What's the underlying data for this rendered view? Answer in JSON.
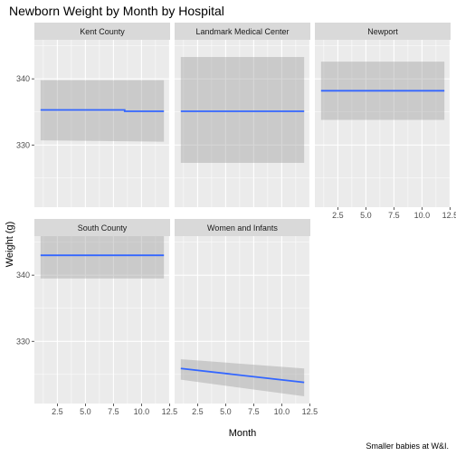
{
  "chart_data": {
    "type": "line",
    "title": "Newborn Weight by Month by Hospital",
    "xlabel": "Month",
    "ylabel": "Weight (g)",
    "caption": "Smaller babies at W&I.",
    "xlim": [
      0.45,
      12.55
    ],
    "ylim": [
      320.6,
      345.9
    ],
    "x_ticks": [
      2.5,
      5.0,
      7.5,
      10.0,
      12.5
    ],
    "x_tick_labels": [
      "2.5",
      "5.0",
      "7.5",
      "10.0",
      "12.5"
    ],
    "y_ticks": [
      330,
      340
    ],
    "y_tick_labels": [
      "330",
      "340"
    ],
    "grid": true,
    "facet_layout": "3 columns x 2 rows",
    "panels": [
      {
        "name": "Kent County",
        "fit": [
          [
            1,
            335.3
          ],
          [
            8.5,
            335.3
          ],
          [
            8.5,
            335.1
          ],
          [
            12,
            335.1
          ]
        ],
        "band_upper": [
          [
            1,
            339.8
          ],
          [
            12,
            339.8
          ]
        ],
        "band_lower": [
          [
            1,
            330.7
          ],
          [
            12,
            330.5
          ]
        ]
      },
      {
        "name": "Landmark Medical Center",
        "fit": [
          [
            1,
            335.1
          ],
          [
            12,
            335.1
          ]
        ],
        "band_upper": [
          [
            1,
            343.3
          ],
          [
            12,
            343.3
          ]
        ],
        "band_lower": [
          [
            1,
            327.3
          ],
          [
            12,
            327.3
          ]
        ]
      },
      {
        "name": "Newport",
        "fit": [
          [
            1,
            338.2
          ],
          [
            12,
            338.2
          ]
        ],
        "band_upper": [
          [
            1,
            342.6
          ],
          [
            12,
            342.6
          ]
        ],
        "band_lower": [
          [
            1,
            333.8
          ],
          [
            12,
            333.8
          ]
        ]
      },
      {
        "name": "South County",
        "fit": [
          [
            1,
            343.0
          ],
          [
            12,
            343.0
          ]
        ],
        "band_upper": [
          [
            1,
            346.3
          ],
          [
            12,
            346.3
          ]
        ],
        "band_lower": [
          [
            1,
            339.5
          ],
          [
            12,
            339.5
          ]
        ]
      },
      {
        "name": "Women and Infants",
        "fit": [
          [
            1,
            325.9
          ],
          [
            12,
            323.8
          ]
        ],
        "band_upper": [
          [
            1,
            327.3
          ],
          [
            12,
            325.9
          ]
        ],
        "band_lower": [
          [
            1,
            324.2
          ],
          [
            12,
            321.7
          ]
        ]
      }
    ],
    "colors": {
      "line": "#3366ff",
      "band": "#c2c2c2",
      "panel_bg": "#ebebeb",
      "strip_bg": "#d9d9d9",
      "grid": "#ffffff"
    }
  }
}
